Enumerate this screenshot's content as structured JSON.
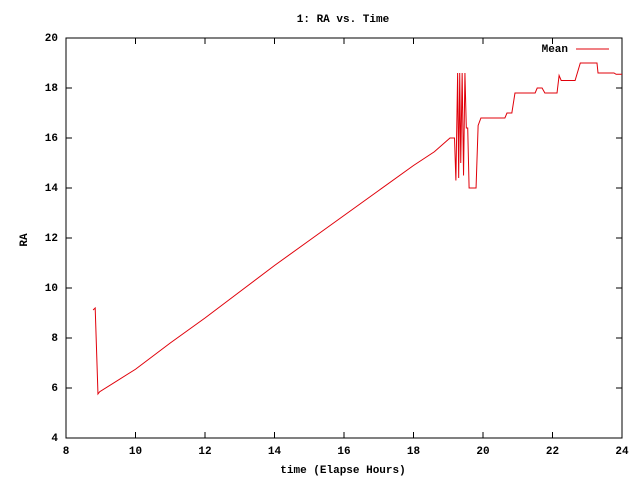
{
  "chart_data": {
    "type": "line",
    "title": "1: RA vs. Time",
    "x_label": "time (Elapse Hours)",
    "y_label": "RA",
    "x": [
      8.78,
      8.84,
      8.92,
      8.97,
      10.0,
      11.0,
      12.0,
      13.0,
      14.0,
      15.0,
      16.0,
      17.0,
      18.0,
      18.6,
      19.05,
      19.18,
      19.22,
      19.27,
      19.3,
      19.33,
      19.36,
      19.4,
      19.44,
      19.48,
      19.52,
      19.56,
      19.6,
      19.65,
      19.8,
      19.86,
      19.94,
      20.63,
      20.69,
      20.83,
      20.92,
      21.5,
      21.56,
      21.7,
      21.78,
      22.13,
      22.19,
      22.25,
      22.65,
      22.8,
      23.28,
      23.31,
      23.77,
      23.83,
      24.0
    ],
    "series": [
      {
        "name": "Mean",
        "color": "#e0000a",
        "values": [
          9.12,
          9.2,
          5.76,
          5.85,
          6.75,
          7.8,
          8.8,
          9.85,
          10.9,
          11.9,
          12.9,
          13.9,
          14.9,
          15.45,
          16.0,
          16.0,
          14.3,
          18.6,
          14.4,
          18.6,
          15.0,
          18.6,
          14.5,
          18.6,
          16.4,
          16.4,
          14.0,
          14.0,
          14.0,
          16.5,
          16.8,
          16.8,
          17.0,
          17.0,
          17.8,
          17.8,
          18.0,
          18.0,
          17.8,
          17.8,
          18.5,
          18.3,
          18.3,
          19.0,
          19.0,
          18.6,
          18.6,
          18.55,
          18.55
        ]
      }
    ],
    "xlim": [
      8,
      24
    ],
    "xticks": [
      8,
      10,
      12,
      14,
      16,
      18,
      20,
      22,
      24
    ],
    "ylim": [
      4,
      20
    ],
    "yticks": [
      4,
      6,
      8,
      10,
      12,
      14,
      16,
      18,
      20
    ],
    "legend": "top-right"
  }
}
